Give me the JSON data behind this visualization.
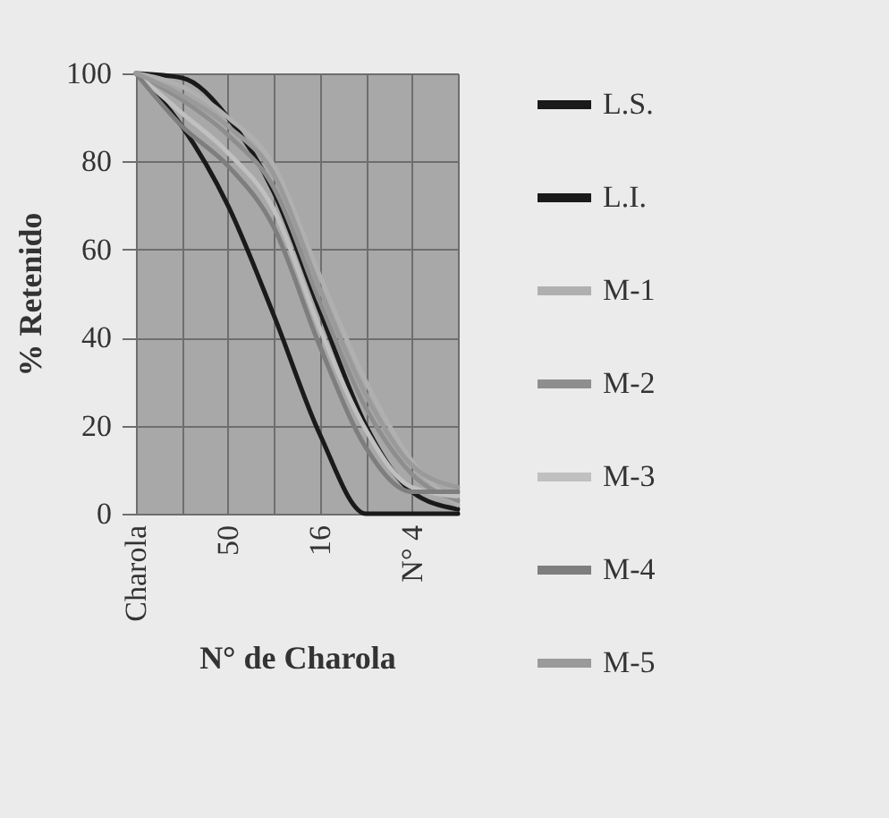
{
  "chart_data": {
    "type": "line",
    "xlabel": "N° de Charola",
    "ylabel": "% Retenido",
    "categories": [
      "Charola",
      null,
      "50",
      null,
      "16",
      null,
      "N° 4",
      null
    ],
    "ylim": [
      0,
      100
    ],
    "yticks": [
      0,
      20,
      40,
      60,
      80,
      100
    ],
    "grid": true,
    "legend": "right",
    "line_style": "solid",
    "marker": "none",
    "series": [
      {
        "name": "L.S.",
        "color": "#1a1a1a",
        "values": [
          100,
          99,
          90,
          73,
          46,
          20,
          5,
          1
        ]
      },
      {
        "name": "L.I.",
        "color": "#1a1a1a",
        "values": [
          100,
          88,
          70,
          45,
          18,
          0,
          0,
          0
        ]
      },
      {
        "name": "M-1",
        "color": "#b0b0b0",
        "values": [
          100,
          97,
          90,
          79,
          54,
          30,
          12,
          2
        ]
      },
      {
        "name": "M-2",
        "color": "#8e8e8e",
        "values": [
          100,
          94,
          86,
          74,
          48,
          24,
          9,
          3
        ]
      },
      {
        "name": "M-3",
        "color": "#c0c0c0",
        "values": [
          100,
          91,
          82,
          69,
          42,
          19,
          6,
          4
        ]
      },
      {
        "name": "M-4",
        "color": "#7e7e7e",
        "values": [
          100,
          88,
          79,
          65,
          38,
          15,
          5,
          5
        ]
      },
      {
        "name": "M-5",
        "color": "#9a9a9a",
        "values": [
          100,
          95,
          88,
          77,
          51,
          27,
          11,
          6
        ]
      }
    ]
  }
}
